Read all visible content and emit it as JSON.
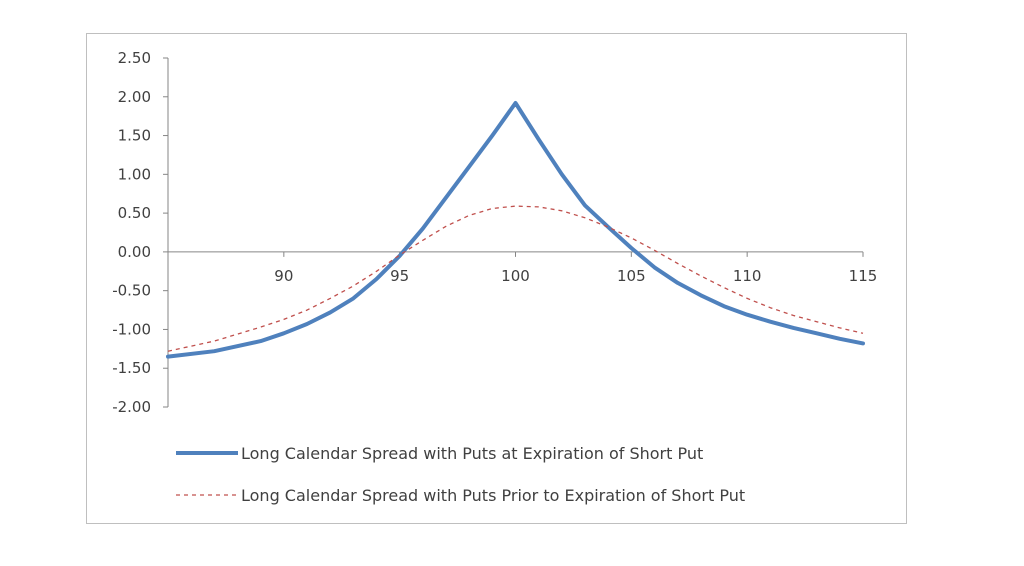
{
  "chart_data": {
    "type": "line",
    "title": "",
    "xlabel": "",
    "ylabel": "",
    "xlim": [
      85,
      115
    ],
    "ylim": [
      -2.0,
      2.5
    ],
    "x_ticks": [
      "90",
      "95",
      "100",
      "105",
      "110",
      "115"
    ],
    "y_ticks": [
      "2.50",
      "2.00",
      "1.50",
      "1.00",
      "0.50",
      "0.00",
      "-0.50",
      "-1.00",
      "-1.50",
      "-2.00"
    ],
    "grid": false,
    "legend_position": "bottom",
    "series": [
      {
        "name": "Long Calendar Spread with Puts at Expiration of Short Put",
        "color": "#4f81bd",
        "style": "solid",
        "x": [
          85,
          87,
          89,
          90,
          91,
          92,
          93,
          94,
          95,
          96,
          97,
          98,
          99,
          100,
          101,
          102,
          103,
          104,
          105,
          106,
          107,
          108,
          109,
          110,
          111,
          112,
          113,
          114,
          115
        ],
        "y": [
          -1.35,
          -1.28,
          -1.15,
          -1.05,
          -0.93,
          -0.78,
          -0.6,
          -0.35,
          -0.05,
          0.3,
          0.7,
          1.1,
          1.5,
          1.92,
          1.45,
          1.0,
          0.6,
          0.32,
          0.05,
          -0.2,
          -0.4,
          -0.56,
          -0.7,
          -0.81,
          -0.9,
          -0.98,
          -1.05,
          -1.12,
          -1.18
        ]
      },
      {
        "name": "Long Calendar Spread with Puts Prior to Expiration of Short Put",
        "color": "#c0504d",
        "style": "dashed",
        "x": [
          85,
          87,
          89,
          90,
          91,
          92,
          93,
          94,
          95,
          96,
          97,
          98,
          99,
          100,
          101,
          102,
          103,
          104,
          105,
          106,
          107,
          108,
          109,
          110,
          111,
          112,
          113,
          114,
          115
        ],
        "y": [
          -1.28,
          -1.15,
          -0.97,
          -0.87,
          -0.75,
          -0.6,
          -0.44,
          -0.25,
          -0.04,
          0.15,
          0.33,
          0.47,
          0.56,
          0.59,
          0.58,
          0.53,
          0.44,
          0.32,
          0.18,
          0.02,
          -0.15,
          -0.31,
          -0.46,
          -0.6,
          -0.72,
          -0.82,
          -0.9,
          -0.98,
          -1.05
        ]
      }
    ]
  }
}
